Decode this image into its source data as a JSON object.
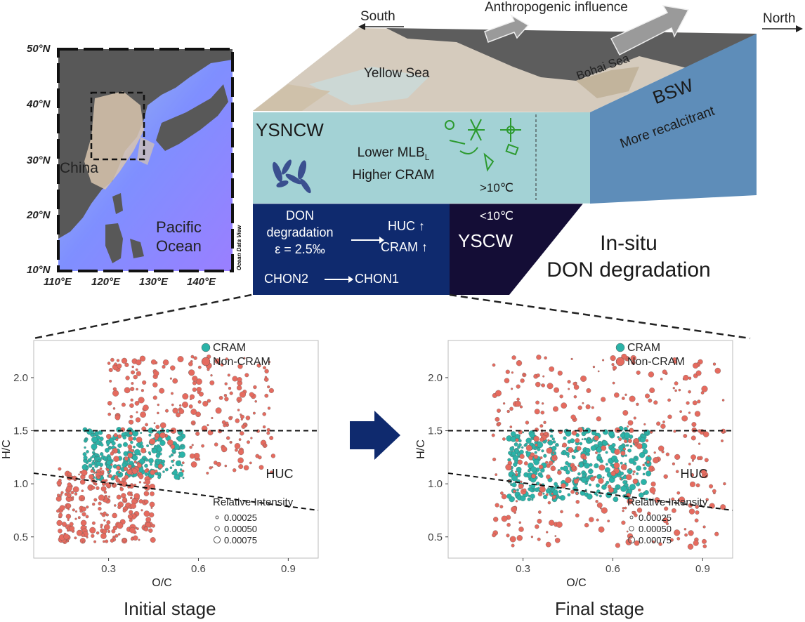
{
  "map": {
    "lat_labels": [
      "50°N",
      "40°N",
      "30°N",
      "20°N",
      "10°N"
    ],
    "lon_labels": [
      "110°E",
      "120°E",
      "130°E",
      "140°E"
    ],
    "china_label": "China",
    "ocean_label_line1": "Pacific",
    "ocean_label_line2": "Ocean",
    "credit": "Ocean Data View"
  },
  "block": {
    "direction_south": "South",
    "direction_north": "North",
    "anthropogenic": "Anthropogenic influence",
    "yellow_sea": "Yellow Sea",
    "bohai_sea": "Bohai Sea",
    "bsw_title": "BSW",
    "bsw_sub": "More recalcitrant",
    "ysncw_title": "YSNCW",
    "ysncw_line1": "Lower MLB",
    "ysncw_line1_sub": "L",
    "ysncw_line2": "Higher CRAM",
    "temp_warm": ">10℃",
    "temp_cold": "<10℃",
    "yscw_title": "YSCW",
    "don_line1": "DON",
    "don_line2": "degradation",
    "don_line3": "ε = 2.5‰",
    "huc_up": "HUC ↑",
    "cram_up": "CRAM ↑",
    "chon2": "CHON2",
    "chon1": "CHON1",
    "insitu_line1": "In-situ",
    "insitu_line2": "DON degradation"
  },
  "chart_data": [
    {
      "type": "scatter",
      "title": "Initial stage",
      "xlabel": "O/C",
      "ylabel": "H/C",
      "x_ticks": [
        "0.3",
        "0.6",
        "0.9"
      ],
      "y_ticks": [
        "0.5",
        "1.0",
        "1.5",
        "2.0"
      ],
      "xlim": [
        0.05,
        1.0
      ],
      "ylim": [
        0.3,
        2.35
      ],
      "reference_lines": [
        {
          "type": "horizontal",
          "y": 1.5
        },
        {
          "type": "line",
          "points": [
            [
              0.05,
              1.1
            ],
            [
              1.0,
              0.75
            ]
          ]
        }
      ],
      "annotations": [
        "HUC"
      ],
      "legend": [
        "CRAM",
        "Non-CRAM"
      ],
      "legend_position": "top-right",
      "size_legend_title": "Relative Intensity",
      "size_legend": [
        "0.00025",
        "0.00050",
        "0.00075"
      ],
      "colors": {
        "CRAM": "#2bb3a8",
        "Non-CRAM": "#e56b5f"
      },
      "series": [
        {
          "name": "CRAM",
          "regions": [
            [
              0.22,
              0.55,
              1.05,
              1.52
            ]
          ]
        },
        {
          "name": "Non-CRAM",
          "regions": [
            [
              0.13,
              0.45,
              0.45,
              1.15
            ],
            [
              0.3,
              0.85,
              1.1,
              2.2
            ]
          ]
        }
      ]
    },
    {
      "type": "scatter",
      "title": "Final stage",
      "xlabel": "O/C",
      "ylabel": "H/C",
      "x_ticks": [
        "0.3",
        "0.6",
        "0.9"
      ],
      "y_ticks": [
        "0.5",
        "1.0",
        "1.5",
        "2.0"
      ],
      "xlim": [
        0.05,
        1.0
      ],
      "ylim": [
        0.3,
        2.35
      ],
      "reference_lines": [
        {
          "type": "horizontal",
          "y": 1.5
        },
        {
          "type": "line",
          "points": [
            [
              0.05,
              1.1
            ],
            [
              1.0,
              0.75
            ]
          ]
        }
      ],
      "annotations": [
        "HUC"
      ],
      "legend": [
        "CRAM",
        "Non-CRAM"
      ],
      "legend_position": "top-right",
      "size_legend_title": "Relative Intensity",
      "size_legend": [
        "0.00025",
        "0.00050",
        "0.00075"
      ],
      "colors": {
        "CRAM": "#2bb3a8",
        "Non-CRAM": "#e56b5f"
      },
      "series": [
        {
          "name": "CRAM",
          "regions": [
            [
              0.25,
              0.72,
              0.85,
              1.52
            ]
          ]
        },
        {
          "name": "Non-CRAM",
          "regions": [
            [
              0.2,
              0.98,
              0.4,
              2.2
            ]
          ]
        }
      ]
    }
  ]
}
